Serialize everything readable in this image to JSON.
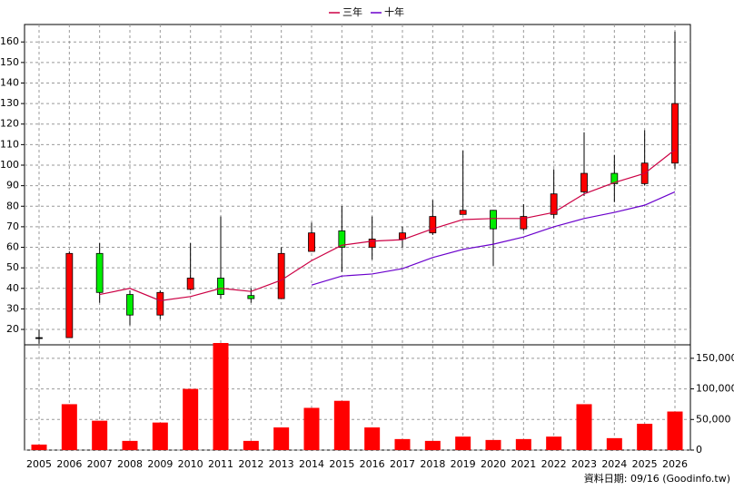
{
  "chart_data": [
    {
      "type": "candlestick",
      "open": [
        16,
        16,
        57,
        37,
        27,
        39.5,
        45,
        36.5,
        35,
        58,
        68,
        60,
        64,
        67,
        76,
        78,
        69,
        76,
        87,
        96,
        91,
        101
      ],
      "high": [
        20,
        58,
        62,
        39,
        39,
        62,
        75,
        40,
        60,
        72,
        80,
        75,
        70,
        83,
        107,
        78,
        81,
        98,
        116,
        105,
        117,
        165
      ],
      "low": [
        13,
        16,
        33,
        22,
        25,
        39,
        35,
        33,
        35,
        58,
        48,
        54,
        60,
        66,
        76,
        51,
        68,
        74,
        85,
        82,
        90,
        98
      ],
      "close": [
        16,
        57,
        38,
        27,
        38,
        45,
        37,
        35,
        57,
        67,
        60,
        64,
        67,
        75,
        78,
        69,
        75,
        86,
        96,
        91,
        101,
        130
      ],
      "up_color": "#ff0000",
      "down_color": "#00ee00",
      "series": [
        {
          "name": "三年",
          "color": "#cc0044",
          "values": [
            null,
            null,
            37,
            40,
            34,
            36,
            40,
            38.5,
            44,
            53.5,
            61,
            63,
            63.7,
            69,
            73.5,
            74,
            74,
            77,
            86,
            91.5,
            96,
            107.5
          ]
        },
        {
          "name": "十年",
          "color": "#6a00cc",
          "values": [
            null,
            null,
            null,
            null,
            null,
            null,
            null,
            null,
            null,
            41.6,
            46,
            47,
            49.6,
            55,
            59,
            61.5,
            65,
            70,
            74,
            77,
            80.5,
            87
          ]
        }
      ],
      "ylim": [
        12.5,
        168.5
      ],
      "yticks": [
        20,
        30,
        40,
        50,
        60,
        70,
        80,
        90,
        100,
        110,
        120,
        130,
        140,
        150,
        160
      ],
      "grid": true
    },
    {
      "type": "bar",
      "categories": [
        "2005",
        "2006",
        "2007",
        "2008",
        "2009",
        "2010",
        "2011",
        "2012",
        "2013",
        "2014",
        "2015",
        "2016",
        "2017",
        "2018",
        "2019",
        "2020",
        "2021",
        "2022",
        "2023",
        "2024",
        "2025",
        "2026"
      ],
      "values": [
        9000,
        75000,
        48000,
        15000,
        45000,
        100000,
        175000,
        15000,
        37000,
        69000,
        80500,
        37000,
        18000,
        15000,
        22000,
        16500,
        18000,
        22000,
        75000,
        19500,
        43000,
        63000
      ],
      "color": "#ff0000",
      "ylim": [
        0,
        175000
      ],
      "yticks": [
        0,
        {
          "value": 50000,
          "label": "50,000"
        },
        {
          "value": 100000,
          "label": "100,000"
        },
        {
          "value": 150000,
          "label": "150,000"
        }
      ],
      "grid": true,
      "annotation": "資料日期: 09/16 (Goodinfo.tw)"
    }
  ]
}
